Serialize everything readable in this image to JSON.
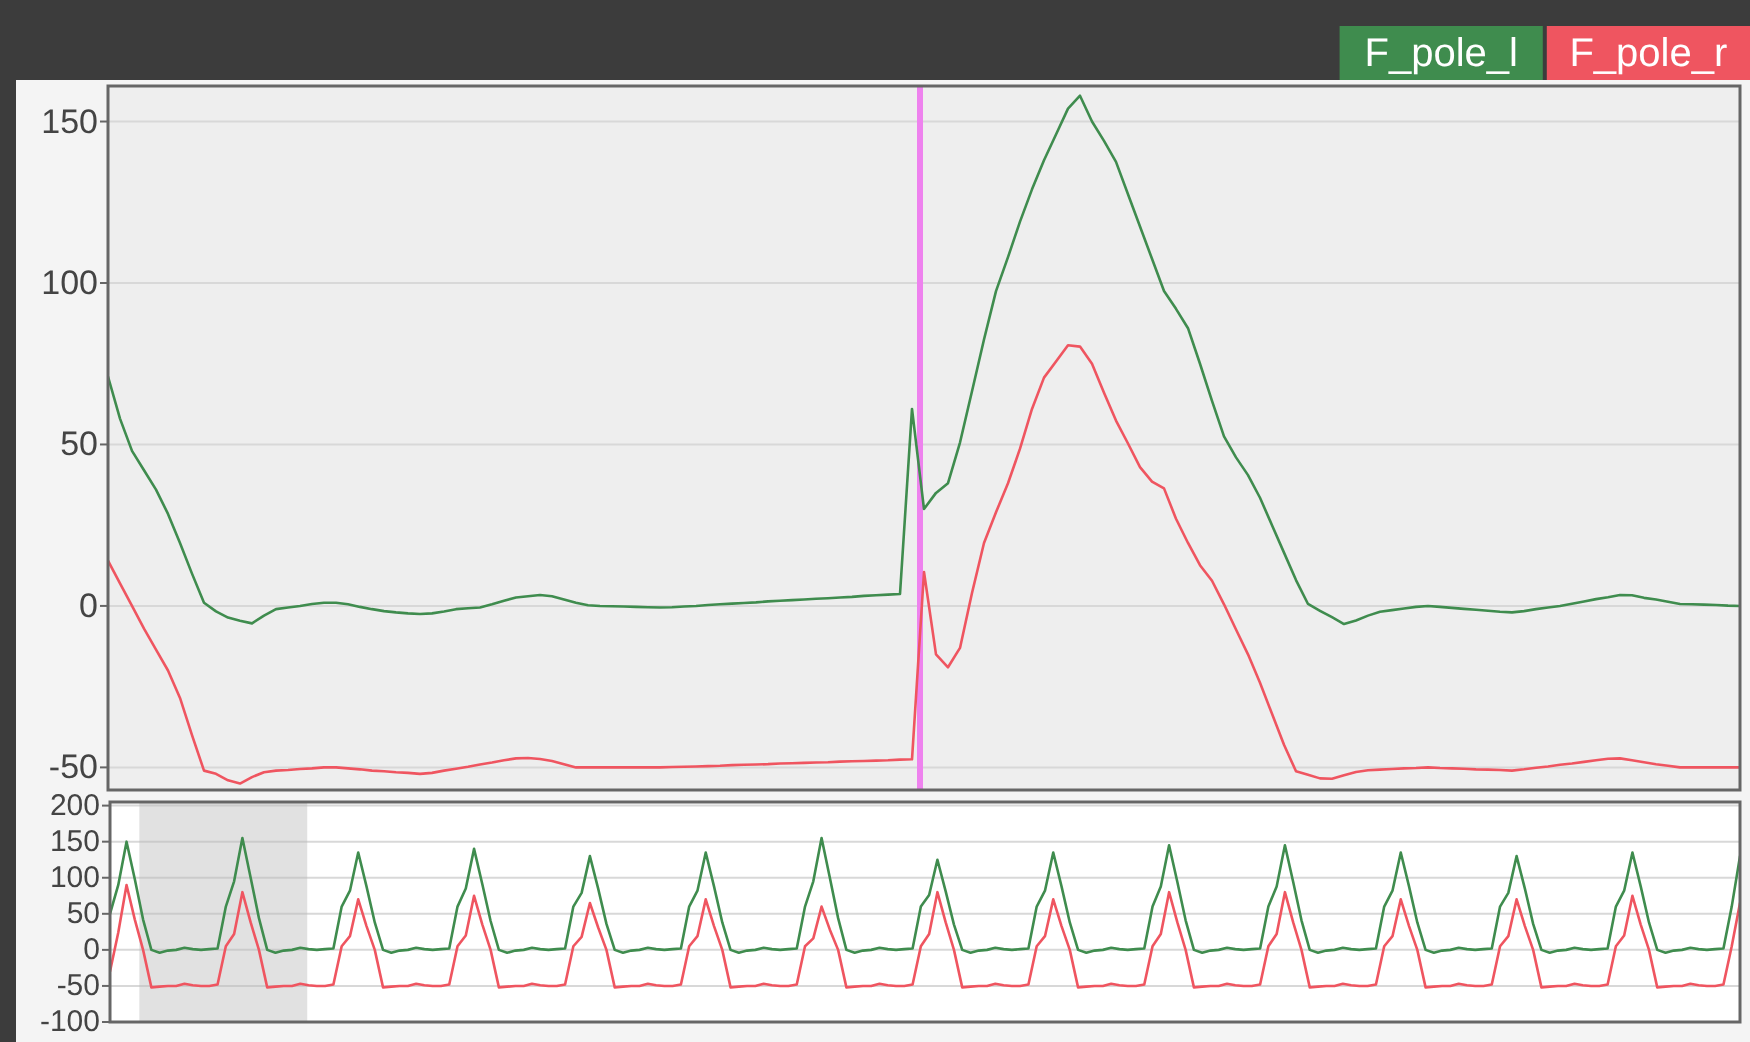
{
  "chart_data": [
    {
      "type": "line",
      "categories": [
        null,
        null,
        null,
        null,
        null,
        null,
        null,
        null,
        null,
        null,
        null,
        null,
        null,
        null,
        null,
        null,
        null,
        null,
        null,
        null,
        null,
        null,
        null,
        null,
        null,
        null,
        null,
        null,
        null,
        null,
        null,
        null,
        null,
        null,
        null,
        null,
        null,
        null,
        null,
        null,
        null,
        null,
        null,
        null,
        null,
        null,
        null,
        null,
        null,
        null,
        null,
        null,
        null,
        null,
        null,
        null,
        null,
        null,
        null,
        null,
        null,
        null,
        null,
        null,
        null,
        null,
        null,
        null,
        null,
        null,
        null,
        null,
        null,
        null,
        null,
        null,
        null,
        null,
        null,
        null,
        null,
        null,
        null,
        null,
        null,
        null,
        null,
        null,
        null,
        null,
        null,
        null,
        null,
        null,
        null,
        null,
        null,
        null,
        null,
        null,
        null,
        null,
        null,
        null,
        null,
        null,
        null,
        null,
        null,
        null,
        null,
        null,
        null,
        null,
        null,
        null,
        null,
        null,
        null,
        null,
        null,
        null,
        null,
        null,
        null,
        null,
        null,
        null,
        null,
        null,
        null,
        null,
        null,
        null,
        null,
        null,
        null
      ],
      "series": [
        {
          "name": "F_pole_l",
          "color": "#3f8c4e",
          "values": [
            71,
            58,
            48,
            42,
            36,
            28.5,
            19.5,
            10,
            1,
            -1.7,
            -3.6,
            -4.6,
            -5.4,
            -3,
            -1,
            -0.5,
            0,
            0.6,
            1,
            1,
            0.5,
            -0.3,
            -1,
            -1.6,
            -2,
            -2.3,
            -2.5,
            -2.3,
            -1.7,
            -1,
            -0.7,
            -0.5,
            0.5,
            1.6,
            2.6,
            3,
            3.4,
            3,
            2,
            1,
            0.2,
            0,
            -0.1,
            -0.2,
            -0.3,
            -0.4,
            -0.5,
            -0.4,
            -0.2,
            0,
            0.3,
            0.5,
            0.7,
            0.9,
            1.1,
            1.4,
            1.6,
            1.8,
            2,
            2.2,
            2.4,
            2.6,
            2.8,
            3.1,
            3.3,
            3.5,
            3.7,
            61,
            30,
            35,
            38,
            50.6,
            66.5,
            82.5,
            97.5,
            108,
            119,
            129,
            138,
            146,
            154,
            158,
            150,
            144,
            137.5,
            127.5,
            117.5,
            107.5,
            97.5,
            92,
            86,
            75,
            63.5,
            52.5,
            46,
            40.5,
            33.5,
            25,
            16.5,
            8,
            0.6,
            -1.5,
            -3.5,
            -5.6,
            -4.5,
            -3,
            -1.8,
            -1.3,
            -0.8,
            -0.3,
            0,
            -0.3,
            -0.6,
            -0.9,
            -1.2,
            -1.5,
            -1.8,
            -2,
            -1.6,
            -1,
            -0.5,
            0,
            0.7,
            1.4,
            2.1,
            2.7,
            3.4,
            3.3,
            2.5,
            2,
            1.3,
            0.6,
            0.5,
            0.4,
            0.3,
            0.1,
            0
          ]
        },
        {
          "name": "F_pole_r",
          "color": "#ef5560",
          "values": [
            14,
            7,
            0,
            -7,
            -13.5,
            -20,
            -28.5,
            -40,
            -51,
            -52,
            -54,
            -55,
            -53,
            -51.5,
            -51,
            -50.8,
            -50.5,
            -50.3,
            -50,
            -50,
            -50.3,
            -50.6,
            -51,
            -51.2,
            -51.5,
            -51.7,
            -52,
            -51.7,
            -51,
            -50.4,
            -49.8,
            -49.1,
            -48.5,
            -47.8,
            -47.2,
            -47.1,
            -47.4,
            -48,
            -49,
            -50,
            -50,
            -50,
            -50,
            -50,
            -50,
            -50,
            -50,
            -49.9,
            -49.8,
            -49.7,
            -49.6,
            -49.5,
            -49.3,
            -49.2,
            -49.1,
            -49,
            -48.8,
            -48.7,
            -48.6,
            -48.5,
            -48.4,
            -48.2,
            -48.1,
            -48,
            -47.9,
            -47.8,
            -47.6,
            -47.5,
            10.5,
            -15,
            -19,
            -13,
            4,
            19.5,
            29,
            38,
            48.7,
            61,
            70.7,
            75.7,
            80.7,
            80.3,
            75,
            66,
            57.4,
            50.3,
            43,
            38.5,
            36.4,
            27,
            19.5,
            12.6,
            7.8,
            0.5,
            -7.3,
            -15,
            -23.8,
            -33.4,
            -43,
            -51.2,
            -52.3,
            -53.4,
            -53.5,
            -52.4,
            -51.4,
            -50.9,
            -50.7,
            -50.5,
            -50.3,
            -50.2,
            -50,
            -50.2,
            -50.3,
            -50.4,
            -50.6,
            -50.7,
            -50.8,
            -51,
            -50.6,
            -50.1,
            -49.7,
            -49.2,
            -48.8,
            -48.3,
            -47.8,
            -47.3,
            -47.2,
            -47.8,
            -48.4,
            -49,
            -49.5,
            -50,
            -50,
            -50,
            -50,
            -50,
            -50
          ]
        }
      ],
      "ylim": [
        -57,
        161
      ],
      "yticks": [
        -50,
        0,
        50,
        100,
        150
      ],
      "grid": "y",
      "legend": "top right"
    },
    {
      "type": "line",
      "categories": [
        null,
        null,
        null,
        null,
        null,
        null,
        null,
        null,
        null,
        null,
        null,
        null,
        null,
        null,
        null,
        null,
        null,
        null,
        null,
        null,
        null,
        null,
        null,
        null,
        null,
        null,
        null,
        null,
        null,
        null,
        null,
        null,
        null,
        null,
        null,
        null,
        null,
        null,
        null,
        null,
        null,
        null,
        null,
        null,
        null,
        null,
        null,
        null,
        null,
        null,
        null,
        null,
        null,
        null,
        null,
        null,
        null,
        null,
        null,
        null,
        null,
        null,
        null,
        null,
        null,
        null,
        null,
        null,
        null,
        null,
        null,
        null,
        null,
        null,
        null,
        null,
        null,
        null,
        null,
        null,
        null,
        null,
        null,
        null,
        null,
        null,
        null,
        null,
        null,
        null,
        null,
        null,
        null,
        null,
        null,
        null,
        null,
        null,
        null,
        null,
        null,
        null,
        null,
        null,
        null,
        null,
        null,
        null,
        null,
        null,
        null,
        null,
        null,
        null,
        null,
        null,
        null,
        null,
        null,
        null,
        null,
        null,
        null,
        null,
        null,
        null,
        null,
        null,
        null,
        null,
        null,
        null,
        null,
        null,
        null,
        null,
        null,
        null,
        null,
        null,
        null,
        null,
        null,
        null,
        null,
        null,
        null,
        null,
        null,
        null,
        null,
        null,
        null,
        null,
        null,
        null,
        null,
        null,
        null,
        null,
        null,
        null,
        null,
        null,
        null,
        null,
        null,
        null,
        null,
        null,
        null,
        null,
        null,
        null,
        null,
        null,
        null,
        null,
        null,
        null,
        null,
        null,
        null,
        null,
        null,
        null,
        null,
        null,
        null,
        null,
        null,
        null,
        null,
        null,
        null,
        null,
        null,
        null
      ],
      "series": [
        {
          "color": "#3f8c4e",
          "values": [
            50,
            90,
            150,
            98,
            42,
            0,
            -4,
            -1,
            0,
            3,
            1,
            0,
            1,
            2,
            60,
            95,
            155,
            100,
            44,
            0,
            -4,
            -1,
            0,
            3,
            1,
            0,
            1,
            2,
            60,
            82,
            135,
            88,
            38,
            0,
            -4,
            -1,
            0,
            3,
            1,
            0,
            1,
            2,
            60,
            85,
            140,
            91,
            40,
            0,
            -4,
            -1,
            0,
            3,
            1,
            0,
            1,
            2,
            60,
            79,
            130,
            85,
            36,
            0,
            -4,
            -1,
            0,
            3,
            1,
            0,
            1,
            2,
            60,
            82,
            135,
            88,
            38,
            0,
            -4,
            -1,
            0,
            3,
            1,
            0,
            1,
            2,
            60,
            95,
            155,
            100,
            44,
            0,
            -4,
            -1,
            0,
            3,
            1,
            0,
            1,
            2,
            60,
            76,
            125,
            81,
            35,
            0,
            -4,
            -1,
            0,
            3,
            1,
            0,
            1,
            2,
            60,
            82,
            135,
            88,
            38,
            0,
            -4,
            -1,
            0,
            3,
            1,
            0,
            1,
            2,
            60,
            88,
            145,
            94,
            41,
            0,
            -4,
            -1,
            0,
            3,
            1,
            0,
            1,
            2,
            60,
            88,
            145,
            94,
            41,
            0,
            -4,
            -1,
            0,
            3,
            1,
            0,
            1,
            2,
            60,
            82,
            135,
            88,
            38,
            0,
            -4,
            -1,
            0,
            3,
            1,
            0,
            1,
            2,
            60,
            79,
            130,
            85,
            36,
            0,
            -4,
            -1,
            0,
            3,
            1,
            0,
            1,
            2,
            60,
            82,
            135,
            88,
            38,
            0,
            -4,
            -1,
            0,
            3,
            1,
            0,
            1,
            2,
            60,
            130
          ]
        },
        {
          "color": "#ef5560",
          "values": [
            -30,
            24,
            90,
            42,
            0,
            -52,
            -51,
            -50,
            -50,
            -47,
            -49,
            -50,
            -50,
            -48,
            5,
            22,
            80,
            38,
            0,
            -52,
            -51,
            -50,
            -50,
            -47,
            -49,
            -50,
            -50,
            -48,
            5,
            19,
            70,
            33,
            0,
            -52,
            -51,
            -50,
            -50,
            -47,
            -49,
            -50,
            -50,
            -48,
            5,
            20,
            75,
            35,
            0,
            -52,
            -51,
            -50,
            -50,
            -47,
            -49,
            -50,
            -50,
            -48,
            5,
            18,
            65,
            31,
            0,
            -52,
            -51,
            -50,
            -50,
            -47,
            -49,
            -50,
            -50,
            -48,
            5,
            19,
            70,
            33,
            0,
            -52,
            -51,
            -50,
            -50,
            -47,
            -49,
            -50,
            -50,
            -48,
            5,
            16,
            60,
            28,
            0,
            -52,
            -51,
            -50,
            -50,
            -47,
            -49,
            -50,
            -50,
            -48,
            5,
            22,
            80,
            38,
            0,
            -52,
            -51,
            -50,
            -50,
            -47,
            -49,
            -50,
            -50,
            -48,
            5,
            19,
            70,
            33,
            0,
            -52,
            -51,
            -50,
            -50,
            -47,
            -49,
            -50,
            -50,
            -48,
            5,
            22,
            80,
            38,
            0,
            -52,
            -51,
            -50,
            -50,
            -47,
            -49,
            -50,
            -50,
            -48,
            5,
            22,
            80,
            38,
            0,
            -52,
            -51,
            -50,
            -50,
            -47,
            -49,
            -50,
            -50,
            -48,
            5,
            19,
            70,
            33,
            0,
            -52,
            -51,
            -50,
            -50,
            -47,
            -49,
            -50,
            -50,
            -48,
            5,
            19,
            70,
            33,
            0,
            -52,
            -51,
            -50,
            -50,
            -47,
            -49,
            -50,
            -50,
            -48,
            5,
            20,
            75,
            35,
            0,
            -52,
            -51,
            -50,
            -50,
            -47,
            -49,
            -50,
            -50,
            -48,
            5,
            65
          ]
        }
      ],
      "ylim": [
        -100,
        205
      ],
      "yticks": [
        -100,
        -50,
        0,
        50,
        100,
        150,
        200
      ],
      "grid": "y"
    }
  ]
}
